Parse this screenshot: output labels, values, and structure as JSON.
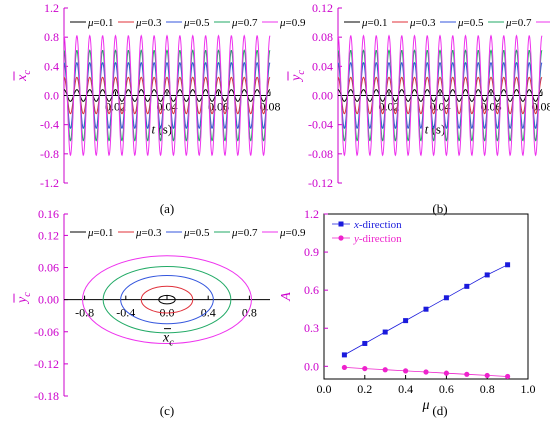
{
  "figure": {
    "panel_labels": [
      "(a)",
      "(b)",
      "(c)",
      "(d)"
    ]
  },
  "colors": {
    "mu_0_1": "#000000",
    "mu_0_3": "#e0303a",
    "mu_0_5": "#3355dd",
    "mu_0_7": "#22aa66",
    "mu_0_9": "#ee33ee",
    "axis_magenta": "#cc00cc",
    "x_direction": "#1a1adc",
    "y_direction": "#ee22cc"
  },
  "chart_data": [
    {
      "panel": "(a)",
      "type": "line",
      "xlabel": "t (s)",
      "ylabel": "x_c (bar)",
      "xlim": [
        0,
        0.08
      ],
      "ylim": [
        -1.2,
        1.2
      ],
      "xticks": [
        "0.02",
        "0.04",
        "0.06",
        "0.08"
      ],
      "yticks": [
        "1.2",
        "0.8",
        "0.4",
        "0.0",
        "-0.4",
        "-0.8",
        "-1.2"
      ],
      "oscillations_in_range": 16,
      "series": [
        {
          "name": "μ=0.1",
          "amplitude": 0.08
        },
        {
          "name": "μ=0.3",
          "amplitude": 0.25
        },
        {
          "name": "μ=0.5",
          "amplitude": 0.45
        },
        {
          "name": "μ=0.7",
          "amplitude": 0.62
        },
        {
          "name": "μ=0.9",
          "amplitude": 0.82
        }
      ],
      "legend": "top"
    },
    {
      "panel": "(b)",
      "type": "line",
      "xlabel": "t (s)",
      "ylabel": "y_c (bar)",
      "xlim": [
        0,
        0.08
      ],
      "ylim": [
        -0.12,
        0.12
      ],
      "xticks": [
        "0.02",
        "0.04",
        "0.06",
        "0.08"
      ],
      "yticks": [
        "0.12",
        "0.08",
        "0.04",
        "0.00",
        "-0.04",
        "-0.08",
        "-0.12"
      ],
      "oscillations_in_range": 16,
      "series": [
        {
          "name": "μ=0.1",
          "amplitude": 0.008
        },
        {
          "name": "μ=0.3",
          "amplitude": 0.025
        },
        {
          "name": "μ=0.5",
          "amplitude": 0.045
        },
        {
          "name": "μ=0.7",
          "amplitude": 0.062
        },
        {
          "name": "μ=0.9",
          "amplitude": 0.082
        }
      ],
      "legend": "top"
    },
    {
      "panel": "(c)",
      "type": "line",
      "xlabel": "x_c (bar)",
      "ylabel": "y_c (bar)",
      "xlim": [
        -1.0,
        1.0
      ],
      "ylim": [
        -0.18,
        0.16
      ],
      "xticks": [
        "-0.8",
        "-0.4",
        "0.0",
        "0.4",
        "0.8"
      ],
      "yticks": [
        "0.16",
        "0.12",
        "0.06",
        "0.00",
        "-0.06",
        "-0.12",
        "-0.18"
      ],
      "series": [
        {
          "name": "μ=0.1",
          "rx": 0.08,
          "ry": 0.008
        },
        {
          "name": "μ=0.3",
          "rx": 0.25,
          "ry": 0.025
        },
        {
          "name": "μ=0.5",
          "rx": 0.45,
          "ry": 0.045
        },
        {
          "name": "μ=0.7",
          "rx": 0.62,
          "ry": 0.062
        },
        {
          "name": "μ=0.9",
          "rx": 0.82,
          "ry": 0.082
        }
      ],
      "legend": "top"
    },
    {
      "panel": "(d)",
      "type": "scatter",
      "xlabel": "μ",
      "ylabel": "A",
      "xlim": [
        0,
        1.0
      ],
      "ylim": [
        -0.1,
        1.2
      ],
      "xticks": [
        "0.0",
        "0.2",
        "0.4",
        "0.6",
        "0.8",
        "1.0"
      ],
      "yticks": [
        "1.2",
        "0.9",
        "0.6",
        "0.3",
        "0.0"
      ],
      "x": [
        0.1,
        0.2,
        0.3,
        0.4,
        0.5,
        0.6,
        0.7,
        0.8,
        0.9
      ],
      "series": [
        {
          "name": "x-direction",
          "values": [
            0.09,
            0.18,
            0.27,
            0.36,
            0.45,
            0.54,
            0.63,
            0.72,
            0.8
          ]
        },
        {
          "name": "y-direction",
          "values": [
            -0.009,
            -0.018,
            -0.027,
            -0.036,
            -0.045,
            -0.054,
            -0.063,
            -0.072,
            -0.08
          ]
        }
      ],
      "legend": "top-left"
    }
  ]
}
